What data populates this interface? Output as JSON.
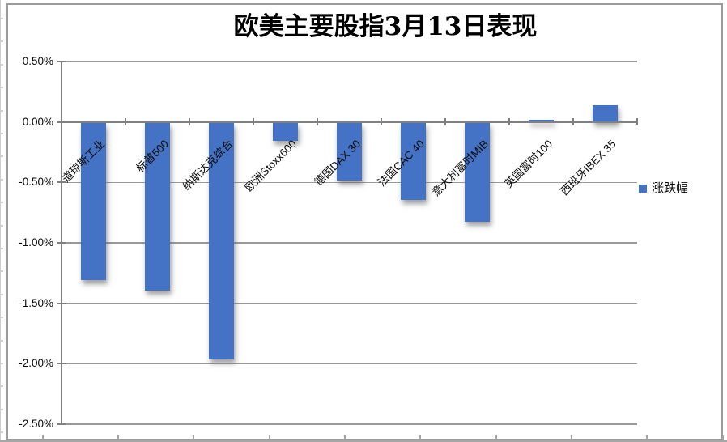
{
  "chart_data": {
    "type": "bar",
    "title": "欧美主要股指3月13日表现",
    "categories": [
      "道琼斯工业",
      "标普500",
      "纳斯达克综合",
      "欧洲Stoxx600",
      "德国DAX 30",
      "法国CAC 40",
      "意大利富时MIB",
      "英国富时100",
      "西班牙IBEX 35"
    ],
    "series": [
      {
        "name": "涨跌幅",
        "values": [
          -1.3,
          -1.39,
          -1.96,
          -0.15,
          -0.48,
          -0.64,
          -0.82,
          0.02,
          0.14
        ]
      }
    ],
    "value_format": "percent",
    "xlabel": "",
    "ylabel": "",
    "ylim": [
      -2.5,
      0.5
    ],
    "ytick_step": 0.5,
    "ytick_labels": [
      "0.50%",
      "0.00%",
      "-0.50%",
      "-1.00%",
      "-1.50%",
      "-2.00%",
      "-2.50%"
    ],
    "grid": true,
    "legend_position": "right",
    "colors": {
      "bar": "#4472C4",
      "gridline": "#999999",
      "axis": "#808080",
      "text": "#000000"
    }
  }
}
